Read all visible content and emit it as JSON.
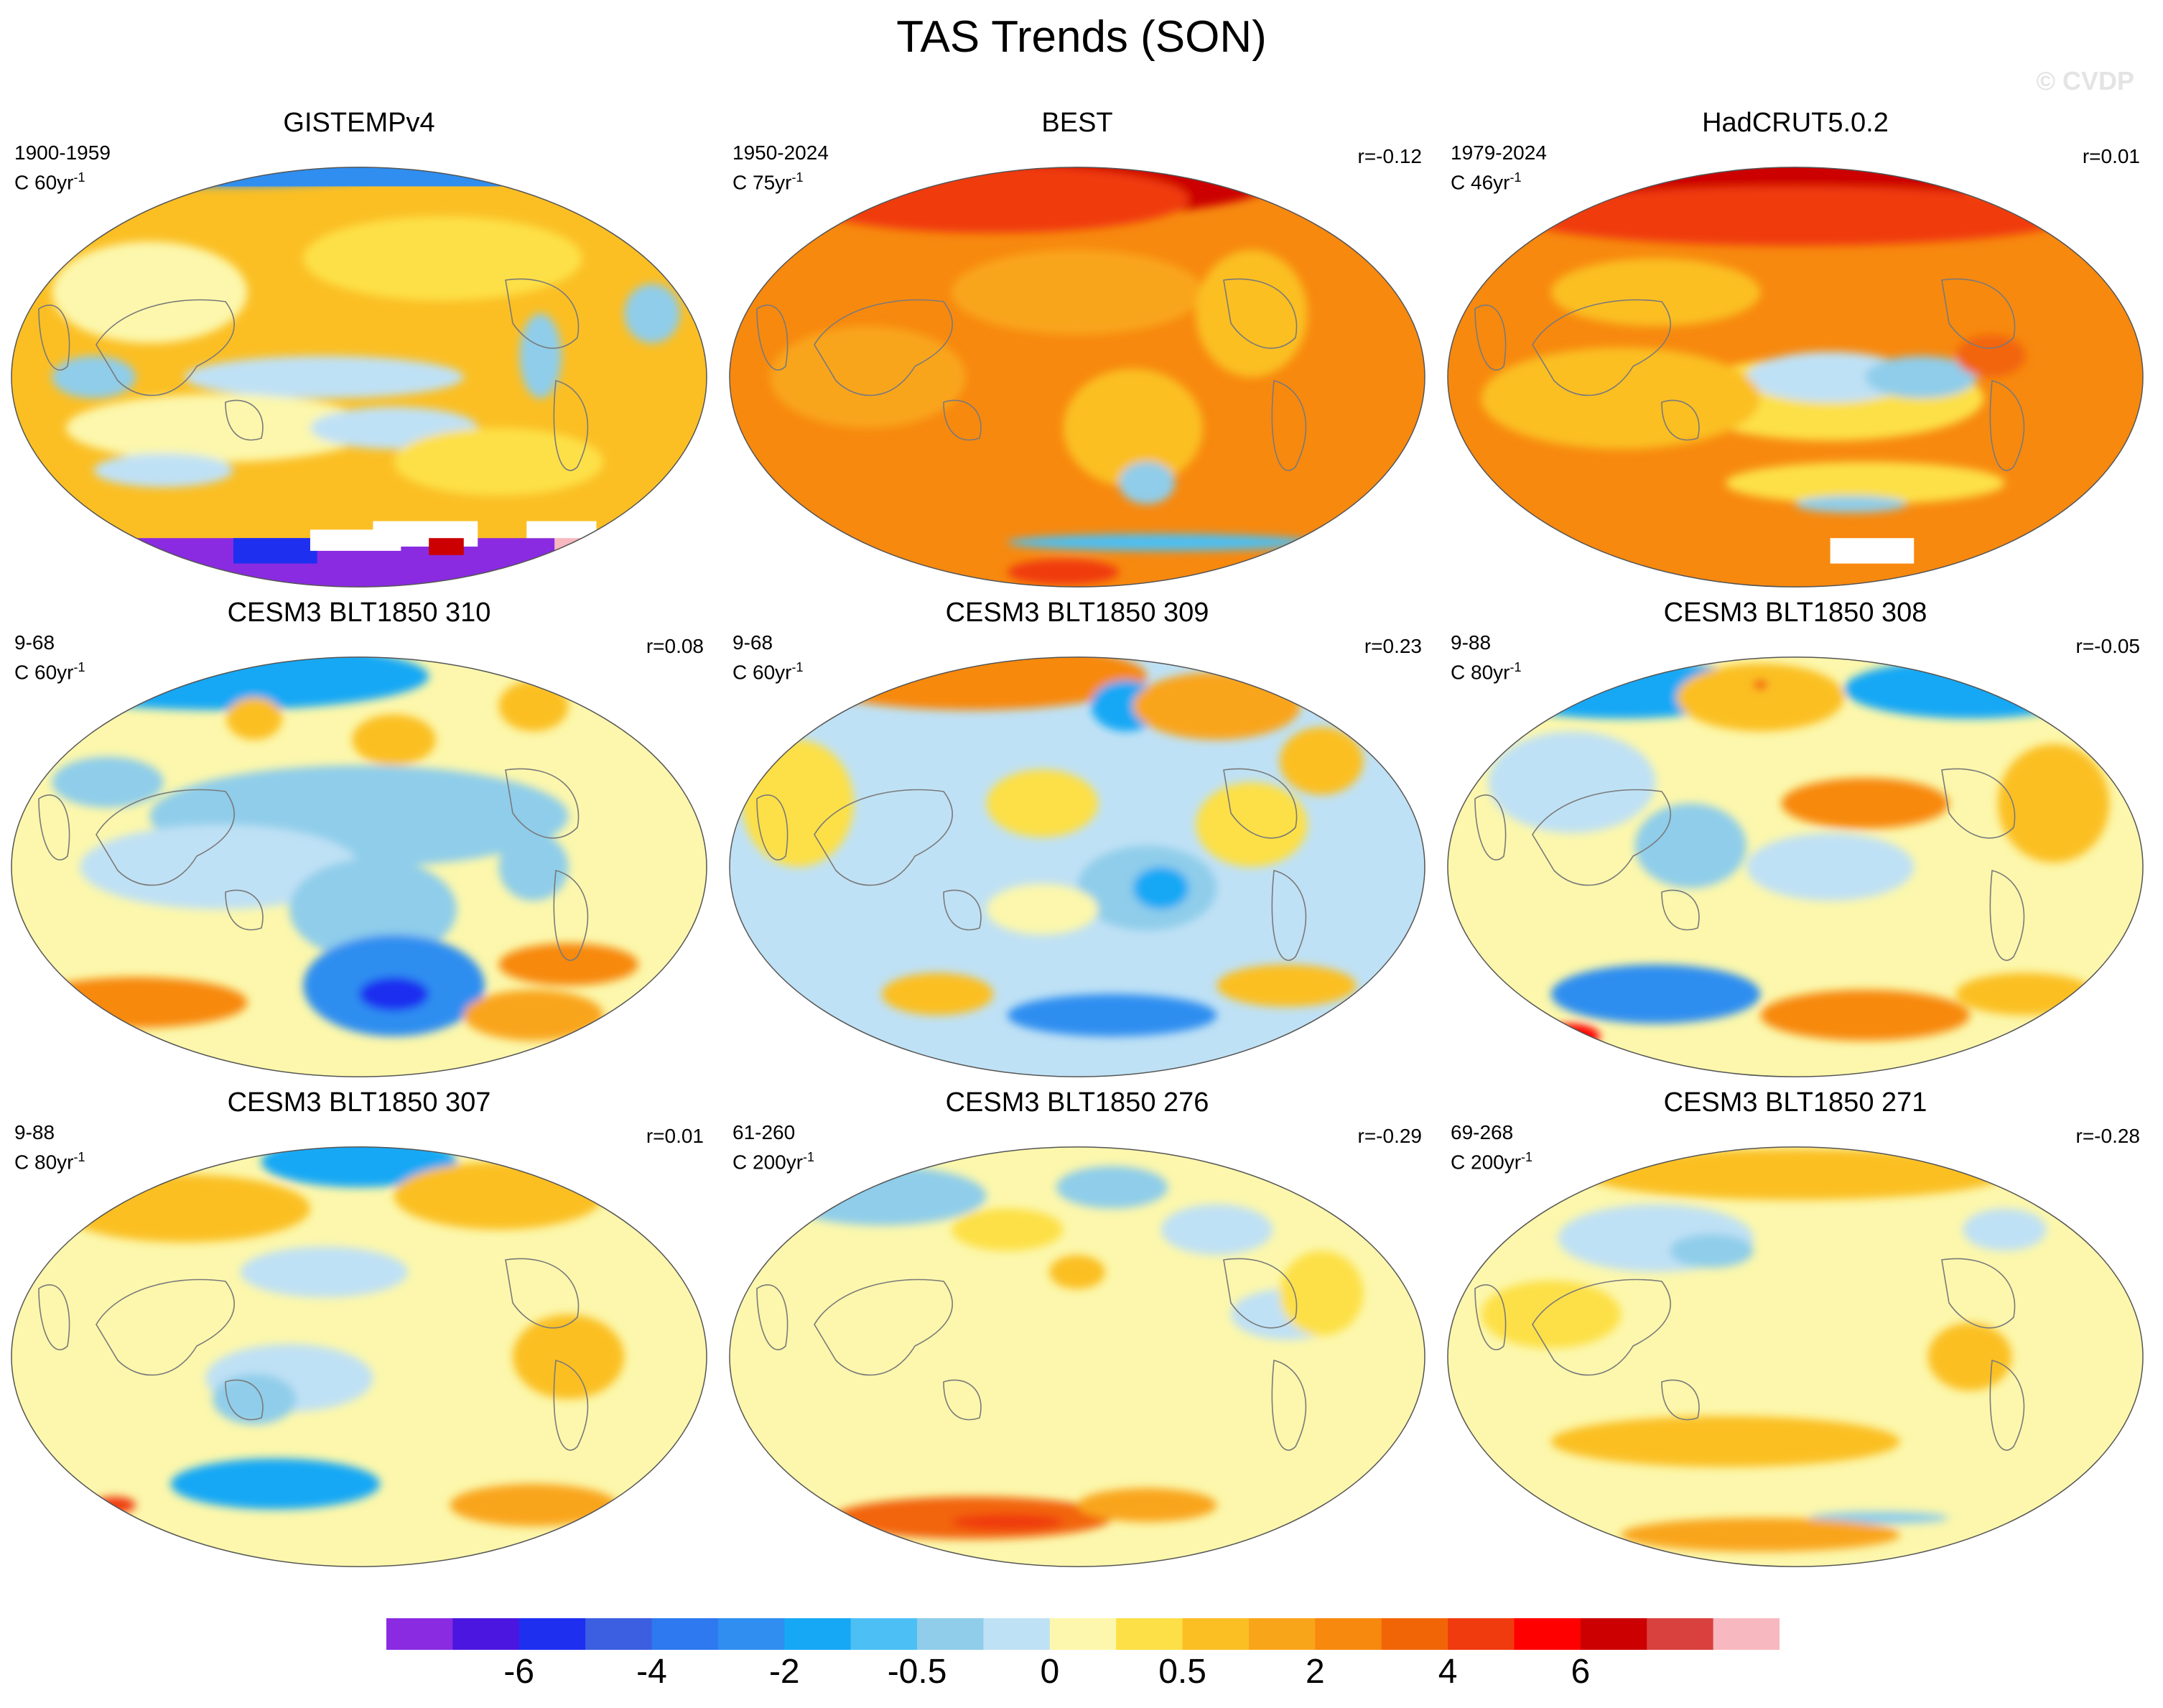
{
  "figure": {
    "title": "TAS Trends (SON)",
    "watermark": "© CVDP"
  },
  "panels": [
    {
      "title": "GISTEMPv4",
      "period": "1900-1959",
      "units": "C 60yr",
      "units_exp": "-1",
      "corr": "",
      "style": "g"
    },
    {
      "title": "BEST",
      "period": "1950-2024",
      "units": "C 75yr",
      "units_exp": "-1",
      "corr": "r=-0.12",
      "style": "b"
    },
    {
      "title": "HadCRUT5.0.2",
      "period": "1979-2024",
      "units": "C 46yr",
      "units_exp": "-1",
      "corr": "r=0.01",
      "style": "h"
    },
    {
      "title": "CESM3 BLT1850 310",
      "period": "9-68",
      "units": "C 60yr",
      "units_exp": "-1",
      "corr": "r=0.08",
      "style": "c1"
    },
    {
      "title": "CESM3 BLT1850 309",
      "period": "9-68",
      "units": "C 60yr",
      "units_exp": "-1",
      "corr": "r=0.23",
      "style": "c2"
    },
    {
      "title": "CESM3 BLT1850 308",
      "period": "9-88",
      "units": "C 80yr",
      "units_exp": "-1",
      "corr": "r=-0.05",
      "style": "c3"
    },
    {
      "title": "CESM3 BLT1850 307",
      "period": "9-88",
      "units": "C 80yr",
      "units_exp": "-1",
      "corr": "r=0.01",
      "style": "c4"
    },
    {
      "title": "CESM3 BLT1850 276",
      "period": "61-260",
      "units": "C 200yr",
      "units_exp": "-1",
      "corr": "r=-0.29",
      "style": "c5"
    },
    {
      "title": "CESM3 BLT1850 271",
      "period": "69-268",
      "units": "C 200yr",
      "units_exp": "-1",
      "corr": "r=-0.28",
      "style": "c6"
    }
  ],
  "colorbar": {
    "colors": [
      "#8a2be2",
      "#4b16e0",
      "#1f2ff0",
      "#3b5fe0",
      "#2e78f0",
      "#2f8ef0",
      "#17a8f5",
      "#4cc0f5",
      "#8fcdea",
      "#bfe1f5",
      "#fcf7ac",
      "#fde047",
      "#fbbf24",
      "#f9a51a",
      "#f7890f",
      "#f26507",
      "#f03b0f",
      "#ff0000",
      "#cc0000",
      "#d9413f",
      "#f8b8bf"
    ],
    "labels": [
      {
        "text": "-6",
        "boundary": 2
      },
      {
        "text": "-4",
        "boundary": 4
      },
      {
        "text": "-2",
        "boundary": 6
      },
      {
        "text": "-0.5",
        "boundary": 8
      },
      {
        "text": "0",
        "boundary": 10
      },
      {
        "text": "0.5",
        "boundary": 12
      },
      {
        "text": "2",
        "boundary": 14
      },
      {
        "text": "4",
        "boundary": 16
      },
      {
        "text": "6",
        "boundary": 18
      }
    ]
  }
}
